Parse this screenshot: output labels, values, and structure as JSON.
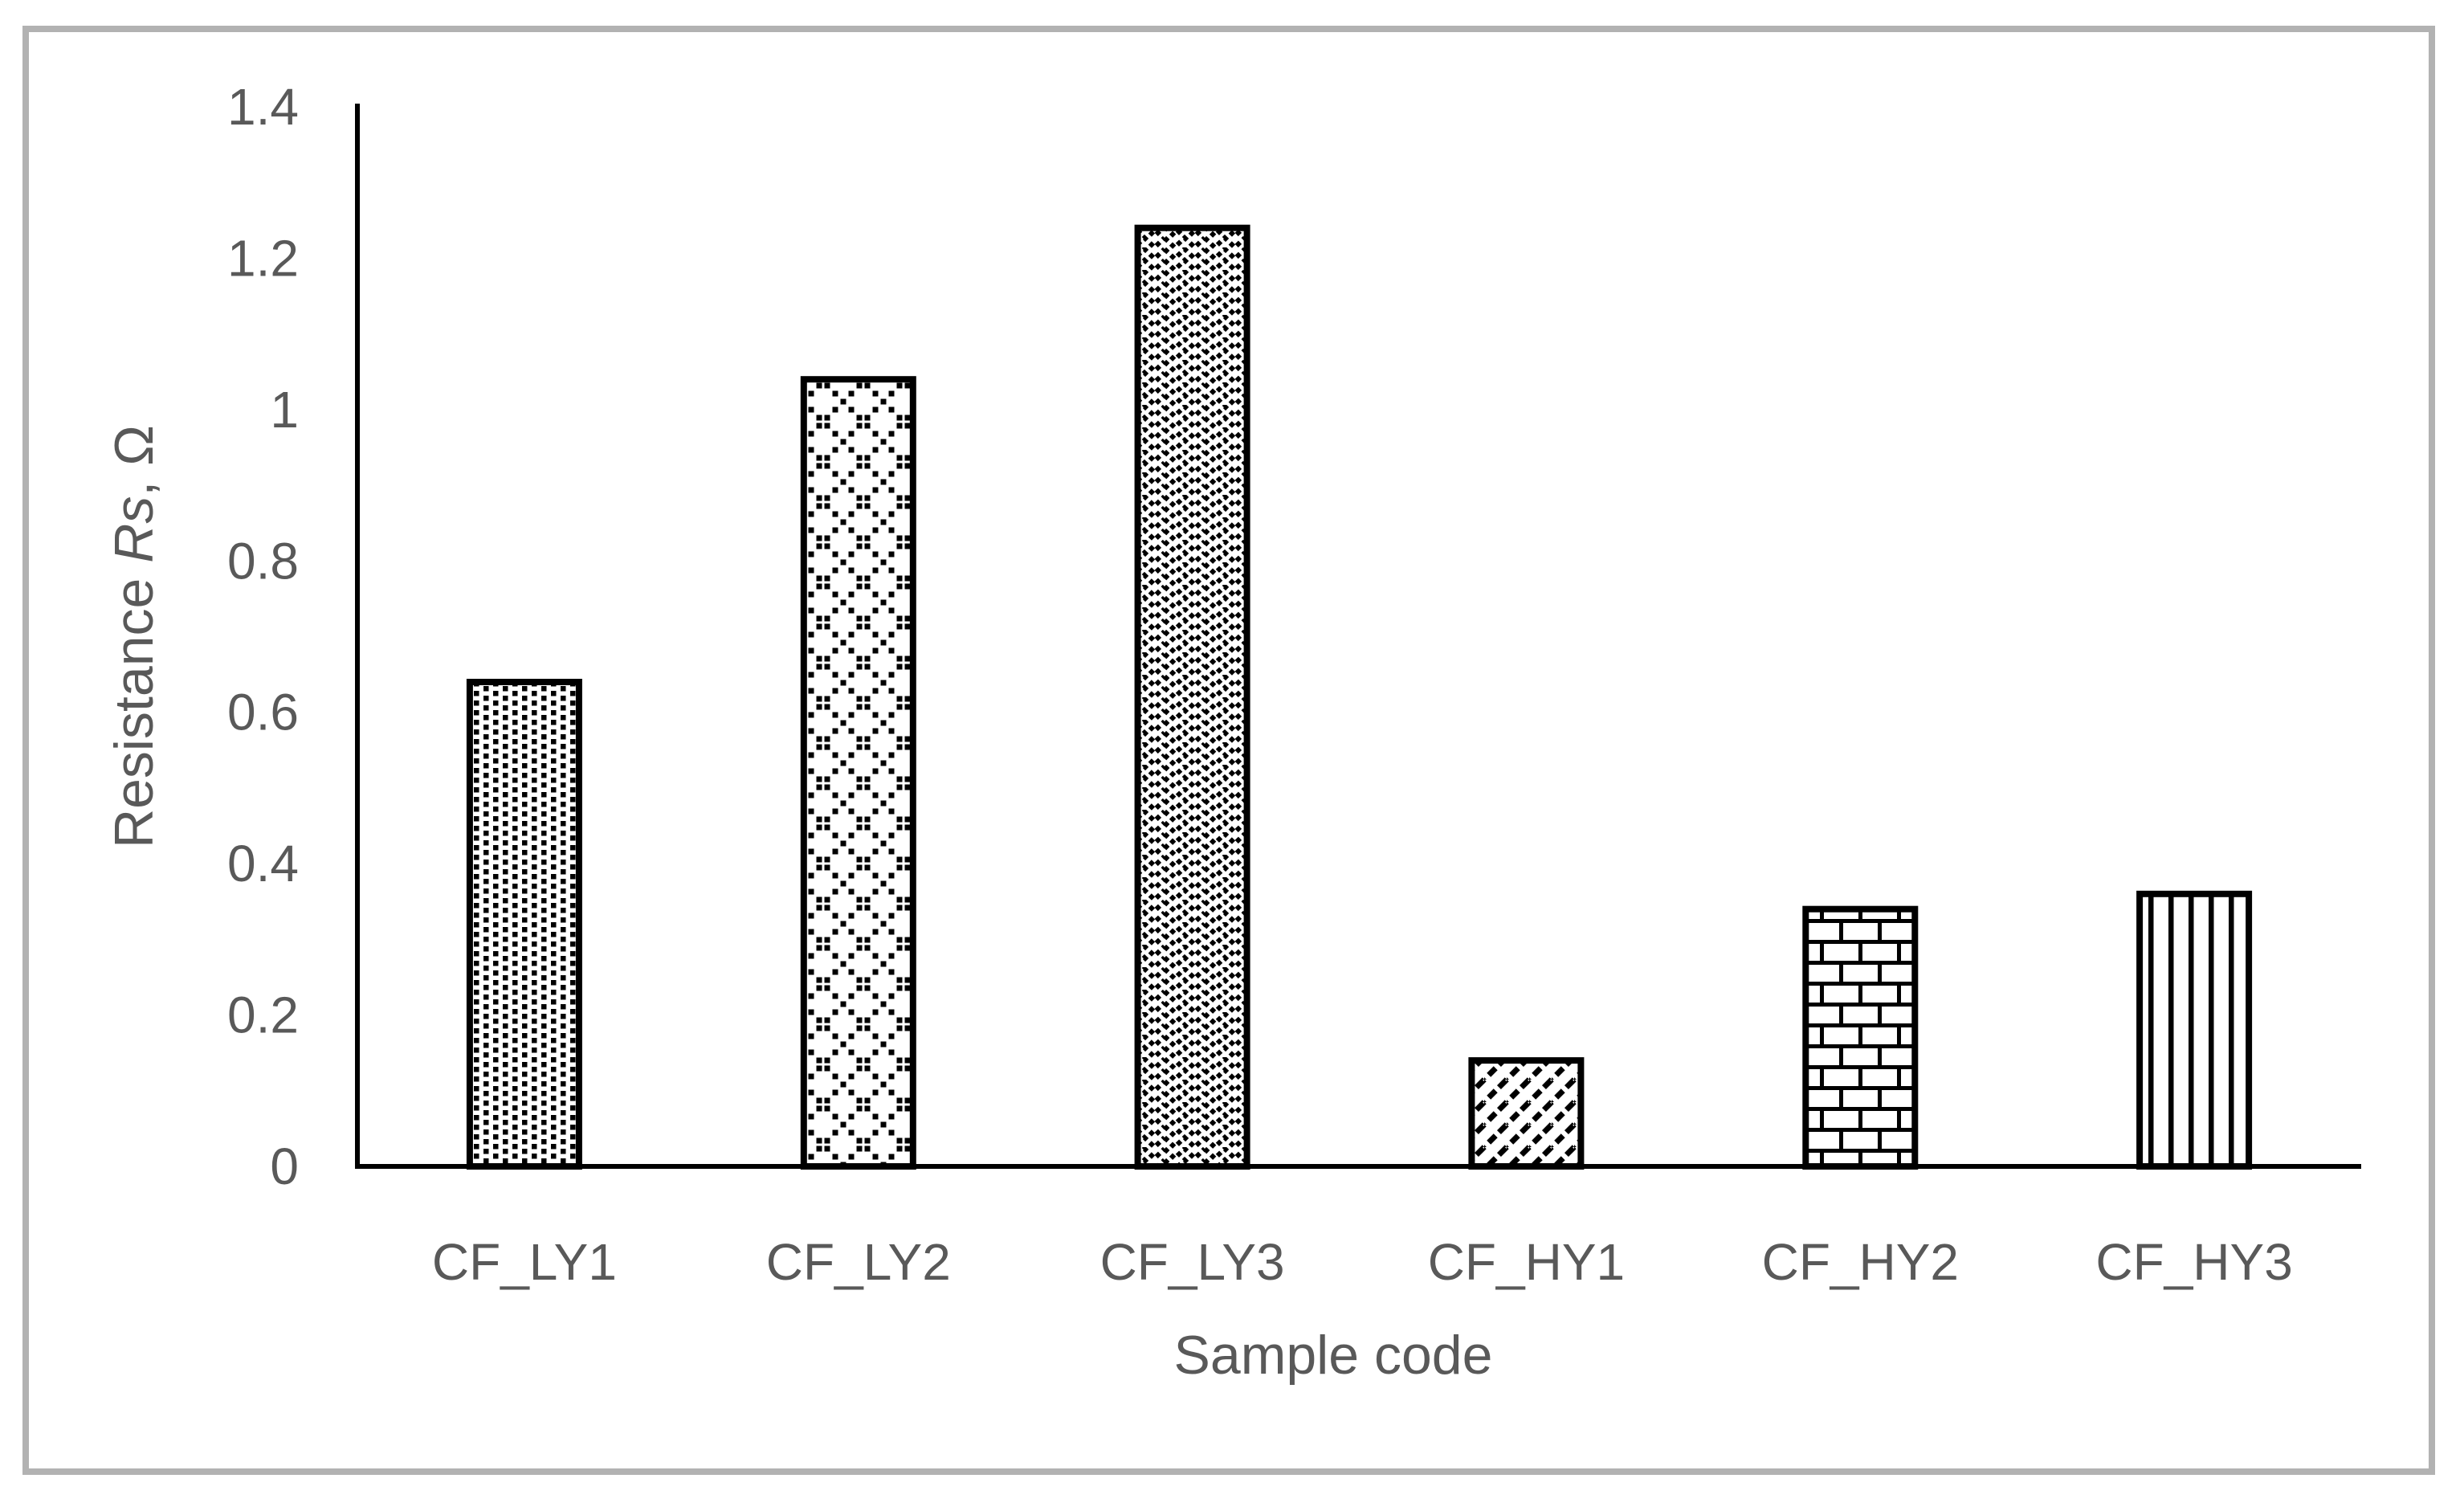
{
  "chart_data": {
    "type": "bar",
    "title": "",
    "xlabel": "Sample code",
    "ylabel_prefix": "Resistance ",
    "ylabel_italic": "Rs",
    "ylabel_suffix": ", Ω",
    "categories": [
      "CF_LY1",
      "CF_LY2",
      "CF_LY3",
      "CF_HY1",
      "CF_HY2",
      "CF_HY3"
    ],
    "values": [
      0.64,
      1.04,
      1.24,
      0.14,
      0.34,
      0.36
    ],
    "bar_patterns": [
      "dots-25",
      "diamond-dotted-crosshatch",
      "zigzag-weave",
      "diagonal-stripes-up",
      "brick",
      "vertical-stripes"
    ],
    "ylim": [
      0,
      1.4
    ],
    "ytick_step": 0.2,
    "ytick_labels": [
      "0",
      "0.2",
      "0.4",
      "0.6",
      "0.8",
      "1",
      "1.2",
      "1.4"
    ],
    "grid": "off",
    "legend": "none",
    "colors": {
      "pattern_foreground": "#000000",
      "bar_background": "#ffffff",
      "bar_border": "#000000",
      "axis_line": "#000000",
      "text": "#595959",
      "frame_border": "#b2b2b2",
      "background": "#ffffff"
    }
  }
}
